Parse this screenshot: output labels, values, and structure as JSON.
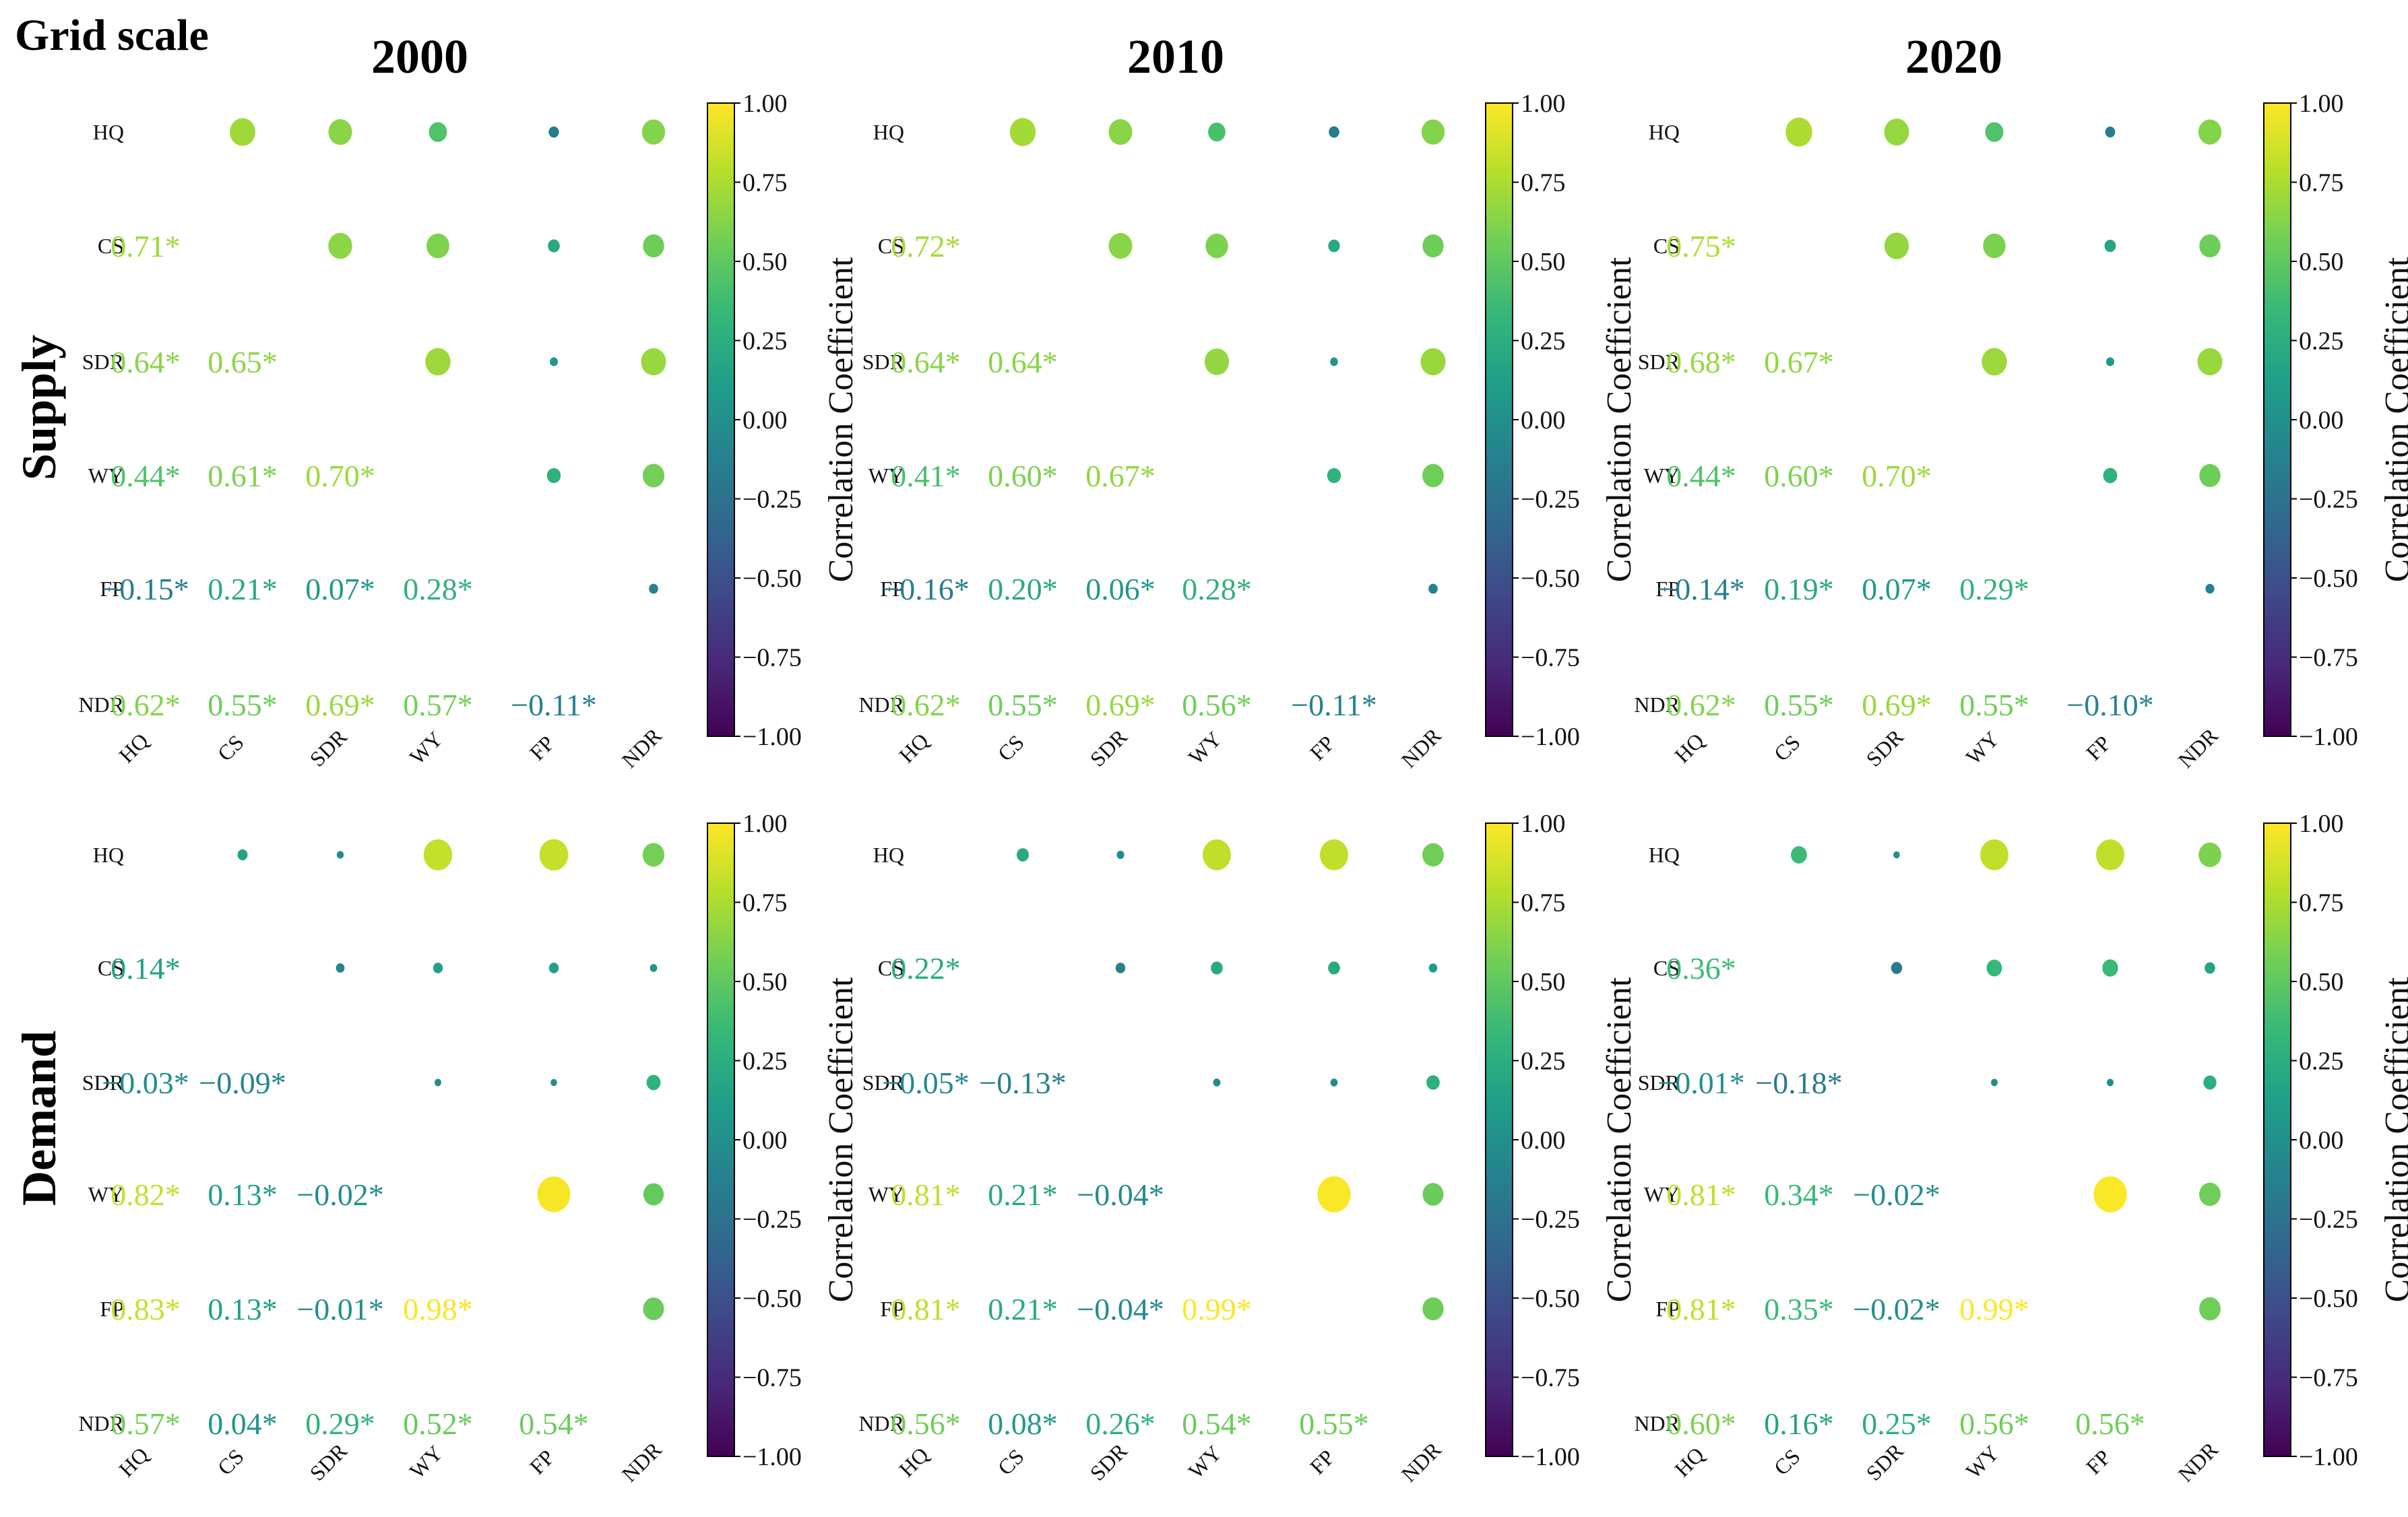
{
  "figure_title": "Grid scale",
  "group_labels": [
    "Supply",
    "Demand"
  ],
  "year_labels": [
    "2000",
    "2010",
    "2020"
  ],
  "colorbar": {
    "title": "Correlation Coefficient",
    "ticks": [
      "1.00",
      "0.75",
      "0.50",
      "0.25",
      "0.00",
      "−0.25",
      "−0.50",
      "−0.75",
      "−1.00"
    ],
    "range": [
      -1,
      1
    ]
  },
  "colors": {
    "viridis": [
      "#440154",
      "#482878",
      "#3e4989",
      "#31688e",
      "#26828e",
      "#1f9e89",
      "#35b779",
      "#6ece58",
      "#b5de2b",
      "#fde725"
    ]
  },
  "chart_data": [
    {
      "type": "heatmap",
      "group": "Supply",
      "year": "2000",
      "variables": [
        "HQ",
        "CS",
        "SDR",
        "WY",
        "FP",
        "NDR"
      ],
      "lower_labels": [
        [],
        [
          "0.71*"
        ],
        [
          "0.64*",
          "0.65*"
        ],
        [
          "0.44*",
          "0.61*",
          "0.70*"
        ],
        [
          "−0.15*",
          "0.21*",
          "0.07*",
          "0.28*"
        ],
        [
          "0.62*",
          "0.55*",
          "0.69*",
          "0.57*",
          "−0.11*"
        ]
      ],
      "lower_values": [
        [],
        [
          0.71
        ],
        [
          0.64,
          0.65
        ],
        [
          0.44,
          0.61,
          0.7
        ],
        [
          -0.15,
          0.21,
          0.07,
          0.28
        ],
        [
          0.62,
          0.55,
          0.69,
          0.57,
          -0.11
        ]
      ]
    },
    {
      "type": "heatmap",
      "group": "Supply",
      "year": "2010",
      "variables": [
        "HQ",
        "CS",
        "SDR",
        "WY",
        "FP",
        "NDR"
      ],
      "lower_labels": [
        [],
        [
          "0.72*"
        ],
        [
          "0.64*",
          "0.64*"
        ],
        [
          "0.41*",
          "0.60*",
          "0.67*"
        ],
        [
          "−0.16*",
          "0.20*",
          "0.06*",
          "0.28*"
        ],
        [
          "0.62*",
          "0.55*",
          "0.69*",
          "0.56*",
          "−0.11*"
        ]
      ],
      "lower_values": [
        [],
        [
          0.72
        ],
        [
          0.64,
          0.64
        ],
        [
          0.41,
          0.6,
          0.67
        ],
        [
          -0.16,
          0.2,
          0.06,
          0.28
        ],
        [
          0.62,
          0.55,
          0.69,
          0.56,
          -0.11
        ]
      ]
    },
    {
      "type": "heatmap",
      "group": "Supply",
      "year": "2020",
      "variables": [
        "HQ",
        "CS",
        "SDR",
        "WY",
        "FP",
        "NDR"
      ],
      "lower_labels": [
        [],
        [
          "0.75*"
        ],
        [
          "0.68*",
          "0.67*"
        ],
        [
          "0.44*",
          "0.60*",
          "0.70*"
        ],
        [
          "−0.14*",
          "0.19*",
          "0.07*",
          "0.29*"
        ],
        [
          "0.62*",
          "0.55*",
          "0.69*",
          "0.55*",
          "−0.10*"
        ]
      ],
      "lower_values": [
        [],
        [
          0.75
        ],
        [
          0.68,
          0.67
        ],
        [
          0.44,
          0.6,
          0.7
        ],
        [
          -0.14,
          0.19,
          0.07,
          0.29
        ],
        [
          0.62,
          0.55,
          0.69,
          0.55,
          -0.1
        ]
      ]
    },
    {
      "type": "heatmap",
      "group": "Demand",
      "year": "2000",
      "variables": [
        "HQ",
        "CS",
        "SDR",
        "WY",
        "FP",
        "NDR"
      ],
      "lower_labels": [
        [],
        [
          "0.14*"
        ],
        [
          "−0.03*",
          "−0.09*"
        ],
        [
          "0.82*",
          "0.13*",
          "−0.02*"
        ],
        [
          "0.83*",
          "0.13*",
          "−0.01*",
          "0.98*"
        ],
        [
          "0.57*",
          "0.04*",
          "0.29*",
          "0.52*",
          "0.54*"
        ]
      ],
      "lower_values": [
        [],
        [
          0.14
        ],
        [
          -0.03,
          -0.09
        ],
        [
          0.82,
          0.13,
          -0.02
        ],
        [
          0.83,
          0.13,
          -0.01,
          0.98
        ],
        [
          0.57,
          0.04,
          0.29,
          0.52,
          0.54
        ]
      ]
    },
    {
      "type": "heatmap",
      "group": "Demand",
      "year": "2010",
      "variables": [
        "HQ",
        "CS",
        "SDR",
        "WY",
        "FP",
        "NDR"
      ],
      "lower_labels": [
        [],
        [
          "0.22*"
        ],
        [
          "−0.05*",
          "−0.13*"
        ],
        [
          "0.81*",
          "0.21*",
          "−0.04*"
        ],
        [
          "0.81*",
          "0.21*",
          "−0.04*",
          "0.99*"
        ],
        [
          "0.56*",
          "0.08*",
          "0.26*",
          "0.54*",
          "0.55*"
        ]
      ],
      "lower_values": [
        [],
        [
          0.22
        ],
        [
          -0.05,
          -0.13
        ],
        [
          0.81,
          0.21,
          -0.04
        ],
        [
          0.81,
          0.21,
          -0.04,
          0.99
        ],
        [
          0.56,
          0.08,
          0.26,
          0.54,
          0.55
        ]
      ]
    },
    {
      "type": "heatmap",
      "group": "Demand",
      "year": "2020",
      "variables": [
        "HQ",
        "CS",
        "SDR",
        "WY",
        "FP",
        "NDR"
      ],
      "lower_labels": [
        [],
        [
          "0.36*"
        ],
        [
          "−0.01*",
          "−0.18*"
        ],
        [
          "0.81*",
          "0.34*",
          "−0.02*"
        ],
        [
          "0.81*",
          "0.35*",
          "−0.02*",
          "0.99*"
        ],
        [
          "0.60*",
          "0.16*",
          "0.25*",
          "0.56*",
          "0.56*"
        ]
      ],
      "lower_values": [
        [],
        [
          0.36
        ],
        [
          -0.01,
          -0.18
        ],
        [
          0.81,
          0.34,
          -0.02
        ],
        [
          0.81,
          0.35,
          -0.02,
          0.99
        ],
        [
          0.6,
          0.16,
          0.25,
          0.56,
          0.56
        ]
      ]
    }
  ]
}
